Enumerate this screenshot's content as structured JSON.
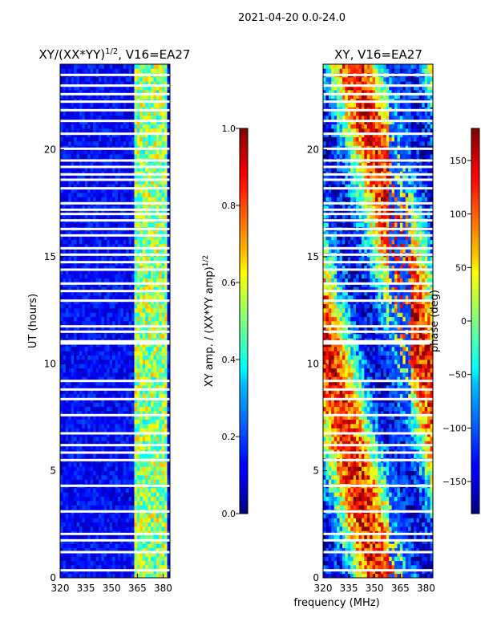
{
  "figure_title": "2021-04-20 0.0-24.0",
  "chart_data": [
    {
      "type": "heatmap",
      "title": "XY/(XX*YY)",
      "title_exponent": "1/2",
      "title_suffix": ", V16=EA27",
      "xlabel": "",
      "ylabel": "UT (hours)",
      "xlim": [
        320,
        384
      ],
      "ylim": [
        0,
        24
      ],
      "xticks": [
        320,
        335,
        350,
        365,
        380
      ],
      "yticks": [
        0,
        5,
        10,
        15,
        20
      ],
      "colorbar": {
        "label": "XY amp. / (XX*YY amp)",
        "label_exponent": "1/2",
        "range": [
          0.0,
          1.0
        ],
        "ticks": [
          "0.0",
          "0.2",
          "0.4",
          "0.6",
          "0.8",
          "1.0"
        ],
        "colormap": "jet"
      },
      "gap_hours": [
        0.35,
        1.2,
        1.75,
        2.05,
        3.1,
        4.3,
        5.5,
        5.85,
        6.2,
        6.75,
        7.6,
        8.35,
        8.8,
        9.2,
        10.95,
        11.05,
        11.5,
        11.75,
        12.95,
        13.4,
        13.75,
        14.4,
        14.75,
        15.1,
        15.4,
        16.0,
        16.3,
        16.7,
        17.0,
        17.2,
        17.5,
        18.2,
        18.6,
        18.85,
        19.2,
        19.5,
        20.05,
        20.75,
        21.35,
        21.85,
        22.25,
        22.6,
        23.0,
        23.5
      ],
      "description_bands": "low ratio ~0.05-0.2 below 360 MHz; enhanced ratio ~0.4-0.7 between 363 and 382 MHz"
    },
    {
      "type": "heatmap",
      "title": "XY, V16=EA27",
      "xlabel": "frequency (MHz)",
      "ylabel": "",
      "xlim": [
        320,
        384
      ],
      "ylim": [
        0,
        24
      ],
      "xticks": [
        320,
        335,
        350,
        365,
        380
      ],
      "yticks": [
        0,
        5,
        10,
        15,
        20
      ],
      "colorbar": {
        "label": "phase (deg)",
        "range": [
          -180,
          180
        ],
        "ticks": [
          "−150",
          "−100",
          "−50",
          "0",
          "50",
          "100",
          "150"
        ],
        "tick_values": [
          -150,
          -100,
          -50,
          0,
          50,
          100,
          150
        ],
        "colormap": "jet"
      },
      "gap_hours": [
        0.35,
        1.2,
        1.75,
        2.05,
        3.1,
        4.3,
        5.5,
        5.85,
        6.2,
        6.75,
        7.6,
        8.35,
        8.8,
        9.2,
        10.95,
        11.05,
        11.5,
        11.75,
        12.95,
        13.4,
        13.75,
        14.4,
        14.75,
        15.1,
        15.4,
        16.0,
        16.3,
        16.7,
        17.0,
        17.2,
        17.5,
        18.2,
        18.6,
        18.85,
        19.2,
        19.5,
        20.05,
        20.75,
        21.35,
        21.85,
        22.25,
        22.6,
        23.0,
        23.5
      ],
      "description_bands": "phase varies widely; red/orange (+100 to +180 deg) patches around 320-350 MHz, blue (-150 deg) regions elsewhere"
    }
  ]
}
